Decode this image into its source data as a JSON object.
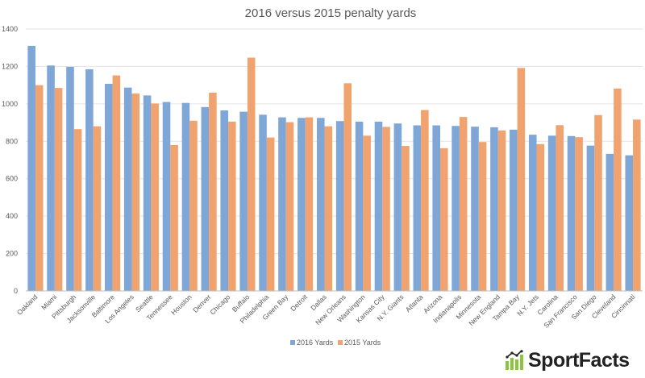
{
  "chart_data": {
    "type": "bar",
    "title": "2016 versus 2015 penalty yards",
    "xlabel": "",
    "ylabel": "",
    "ylim": [
      0,
      1400
    ],
    "yticks": [
      0,
      200,
      400,
      600,
      800,
      1000,
      1200,
      1400
    ],
    "grid": true,
    "legend_position": "bottom",
    "categories": [
      "Oakland",
      "Miami",
      "Pittsburgh",
      "Jacksonville",
      "Baltimore",
      "Los Angeles",
      "Seattle",
      "Tennessee",
      "Houston",
      "Denver",
      "Chicago",
      "Buffalo",
      "Philadelphia",
      "Green Bay",
      "Detroit",
      "Dallas",
      "New Orleans",
      "Washington",
      "Kansas City",
      "N.Y. Giants",
      "Atlanta",
      "Arizona",
      "Indianapolis",
      "Minnesota",
      "New England",
      "Tampa Bay",
      "N.Y. Jets",
      "Carolina",
      "San Francisco",
      "San Diego",
      "Cleveland",
      "Cincinnati"
    ],
    "series": [
      {
        "name": "2016 Yards",
        "color": "#7ea6d6",
        "values": [
          1310,
          1205,
          1198,
          1185,
          1107,
          1087,
          1045,
          1010,
          1005,
          983,
          965,
          958,
          942,
          928,
          925,
          925,
          908,
          905,
          905,
          895,
          885,
          885,
          882,
          878,
          875,
          862,
          835,
          830,
          828,
          777,
          733,
          725
        ]
      },
      {
        "name": "2015 Yards",
        "color": "#f1a36f",
        "values": [
          1100,
          1085,
          865,
          880,
          1152,
          1055,
          1002,
          780,
          910,
          1060,
          905,
          1247,
          820,
          902,
          928,
          880,
          1110,
          830,
          877,
          775,
          967,
          763,
          930,
          796,
          858,
          1192,
          785,
          886,
          822,
          940,
          1082,
          916
        ]
      }
    ]
  },
  "watermark": {
    "text": "SportFacts",
    "icon": "bar-chart-logo-icon"
  }
}
